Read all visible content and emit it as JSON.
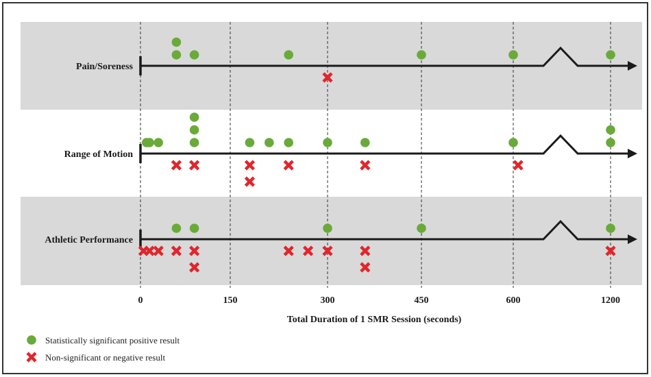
{
  "chart_data": {
    "type": "scatter",
    "xlabel": "Total Duration of 1 SMR Session (seconds)",
    "x_ticks": [
      0,
      150,
      300,
      450,
      600,
      1200
    ],
    "x_axis_break": "between 600 and 1200",
    "grid": "dashed vertical lines at each tick",
    "legend_placement": "bottom-left",
    "colors": {
      "positive": "#6aaa3a",
      "negative": "#e0262c",
      "band": "#d9d9d9",
      "axis": "#1a1a1a"
    },
    "categories": [
      "Pain/Soreness",
      "Range of Motion",
      "Athletic Performance"
    ],
    "series": [
      {
        "name": "Statistically significant positive result",
        "marker": "circle",
        "points": [
          {
            "category": "Pain/Soreness",
            "x": [
              60,
              60,
              90,
              240,
              450,
              600,
              1200
            ]
          },
          {
            "category": "Range of Motion",
            "x": [
              10,
              15,
              30,
              90,
              90,
              90,
              180,
              210,
              240,
              300,
              360,
              600,
              1200,
              1200
            ]
          },
          {
            "category": "Athletic Performance",
            "x": [
              60,
              90,
              300,
              450,
              1200
            ]
          }
        ]
      },
      {
        "name": "Non-significant or negative result",
        "marker": "cross",
        "points": [
          {
            "category": "Pain/Soreness",
            "x": [
              300
            ]
          },
          {
            "category": "Range of Motion",
            "x": [
              60,
              90,
              180,
              180,
              240,
              360,
              630
            ]
          },
          {
            "category": "Athletic Performance",
            "x": [
              5,
              15,
              30,
              60,
              90,
              90,
              240,
              270,
              300,
              360,
              360,
              1200
            ]
          }
        ]
      }
    ]
  }
}
